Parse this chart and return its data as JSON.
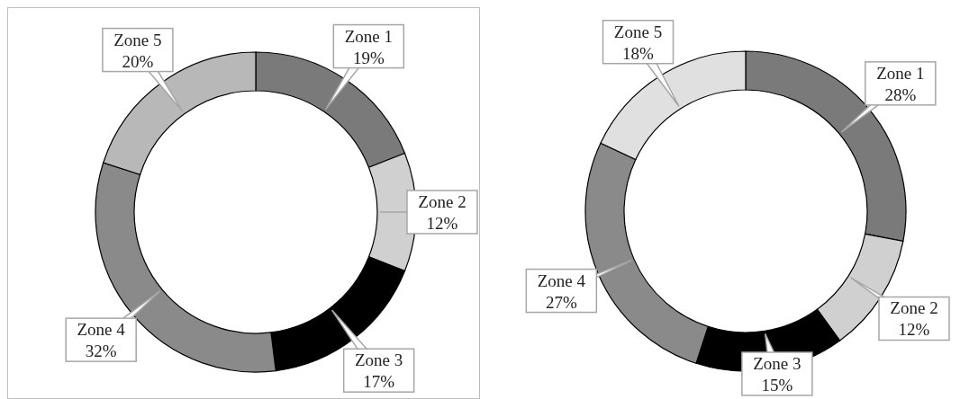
{
  "chart_data": [
    {
      "type": "donut",
      "categories": [
        "Zone 1",
        "Zone 2",
        "Zone 3",
        "Zone 4",
        "Zone 5"
      ],
      "values": [
        19,
        12,
        17,
        32,
        20
      ],
      "value_labels": [
        "19%",
        "12%",
        "17%",
        "32%",
        "20%"
      ],
      "colors": [
        "#7a7a7a",
        "#d0d0d0",
        "#000000",
        "#8a8a8a",
        "#b8b8b8"
      ]
    },
    {
      "type": "donut",
      "categories": [
        "Zone 1",
        "Zone 2",
        "Zone 3",
        "Zone 4",
        "Zone 5"
      ],
      "values": [
        28,
        12,
        15,
        27,
        18
      ],
      "value_labels": [
        "28%",
        "12%",
        "15%",
        "27%",
        "18%"
      ],
      "colors": [
        "#7a7a7a",
        "#d0d0d0",
        "#000000",
        "#8a8a8a",
        "#e0e0e0"
      ]
    }
  ]
}
